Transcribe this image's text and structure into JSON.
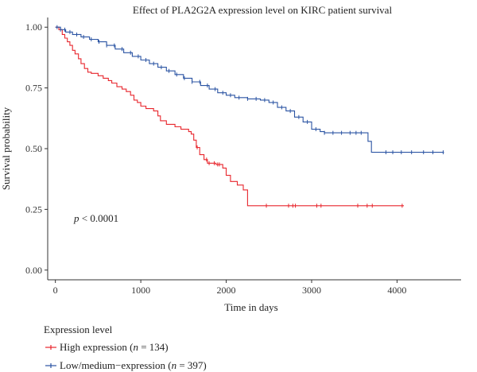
{
  "chart_data": {
    "type": "line",
    "subtype": "kaplan-meier",
    "title": "Effect of PLA2G2A expression level on KIRC patient survival",
    "xlabel": "Time in days",
    "ylabel": "Survival probability",
    "xlim": [
      -90,
      4750
    ],
    "ylim": [
      -0.04,
      1.04
    ],
    "xticks": [
      0,
      1000,
      2000,
      3000,
      4000
    ],
    "yticks": [
      0.0,
      0.25,
      0.5,
      0.75,
      1.0
    ],
    "ytick_labels": [
      "0.00",
      "0.25",
      "0.50",
      "0.75",
      "1.00"
    ],
    "grid": false,
    "annotation": {
      "italic": "p",
      "rest": " < 0.0001"
    },
    "legend": {
      "title": "Expression level",
      "placement": "bottom-left",
      "entries": [
        {
          "series": 0,
          "label_pre": "High expression (",
          "italic": "n",
          "label_post": " = 134)"
        },
        {
          "series": 1,
          "label_pre": "Low/medium−expression (",
          "italic": "n",
          "label_post": " = 397)"
        }
      ]
    },
    "series": [
      {
        "name": "High expression",
        "color": "#e8262d",
        "steps": [
          [
            0,
            1.0
          ],
          [
            40,
            0.99
          ],
          [
            80,
            0.97
          ],
          [
            110,
            0.955
          ],
          [
            140,
            0.94
          ],
          [
            170,
            0.925
          ],
          [
            200,
            0.905
          ],
          [
            230,
            0.89
          ],
          [
            270,
            0.87
          ],
          [
            300,
            0.85
          ],
          [
            340,
            0.83
          ],
          [
            380,
            0.815
          ],
          [
            420,
            0.81
          ],
          [
            500,
            0.8
          ],
          [
            560,
            0.79
          ],
          [
            620,
            0.78
          ],
          [
            660,
            0.77
          ],
          [
            720,
            0.755
          ],
          [
            780,
            0.745
          ],
          [
            830,
            0.735
          ],
          [
            880,
            0.72
          ],
          [
            920,
            0.7
          ],
          [
            960,
            0.69
          ],
          [
            1000,
            0.675
          ],
          [
            1060,
            0.665
          ],
          [
            1150,
            0.655
          ],
          [
            1200,
            0.635
          ],
          [
            1230,
            0.615
          ],
          [
            1300,
            0.6
          ],
          [
            1400,
            0.59
          ],
          [
            1470,
            0.58
          ],
          [
            1560,
            0.57
          ],
          [
            1590,
            0.56
          ],
          [
            1620,
            0.535
          ],
          [
            1650,
            0.505
          ],
          [
            1690,
            0.475
          ],
          [
            1740,
            0.455
          ],
          [
            1780,
            0.44
          ],
          [
            1880,
            0.435
          ],
          [
            1960,
            0.42
          ],
          [
            2000,
            0.39
          ],
          [
            2050,
            0.365
          ],
          [
            2130,
            0.35
          ],
          [
            2200,
            0.33
          ],
          [
            2250,
            0.265
          ],
          [
            4080,
            0.265
          ]
        ],
        "censor_x": [
          1660,
          1770,
          1800,
          1860,
          1900,
          1920,
          2470,
          2730,
          2780,
          2810,
          3060,
          3110,
          3540,
          3650,
          3710,
          4060
        ]
      },
      {
        "name": "Low/medium−expression",
        "color": "#2b54a3",
        "steps": [
          [
            0,
            1.0
          ],
          [
            60,
            0.99
          ],
          [
            120,
            0.98
          ],
          [
            200,
            0.97
          ],
          [
            300,
            0.96
          ],
          [
            400,
            0.95
          ],
          [
            500,
            0.94
          ],
          [
            600,
            0.925
          ],
          [
            700,
            0.91
          ],
          [
            800,
            0.895
          ],
          [
            900,
            0.88
          ],
          [
            1000,
            0.865
          ],
          [
            1100,
            0.85
          ],
          [
            1200,
            0.835
          ],
          [
            1300,
            0.82
          ],
          [
            1400,
            0.805
          ],
          [
            1500,
            0.79
          ],
          [
            1600,
            0.775
          ],
          [
            1700,
            0.76
          ],
          [
            1800,
            0.745
          ],
          [
            1900,
            0.73
          ],
          [
            2000,
            0.72
          ],
          [
            2100,
            0.71
          ],
          [
            2250,
            0.705
          ],
          [
            2400,
            0.7
          ],
          [
            2500,
            0.69
          ],
          [
            2600,
            0.67
          ],
          [
            2700,
            0.655
          ],
          [
            2800,
            0.63
          ],
          [
            2900,
            0.61
          ],
          [
            3000,
            0.58
          ],
          [
            3100,
            0.57
          ],
          [
            3150,
            0.565
          ],
          [
            3600,
            0.565
          ],
          [
            3660,
            0.53
          ],
          [
            3700,
            0.485
          ],
          [
            4550,
            0.485
          ]
        ],
        "censor_x": [
          20,
          60,
          110,
          170,
          250,
          330,
          420,
          510,
          600,
          690,
          780,
          880,
          970,
          1060,
          1150,
          1240,
          1330,
          1420,
          1510,
          1600,
          1690,
          1780,
          1870,
          1960,
          2050,
          2150,
          2250,
          2350,
          2450,
          2550,
          2650,
          2750,
          2850,
          2950,
          3050,
          3150,
          3250,
          3350,
          3450,
          3520,
          3580,
          3870,
          3950,
          4050,
          4170,
          4310,
          4420,
          4540
        ]
      }
    ]
  }
}
